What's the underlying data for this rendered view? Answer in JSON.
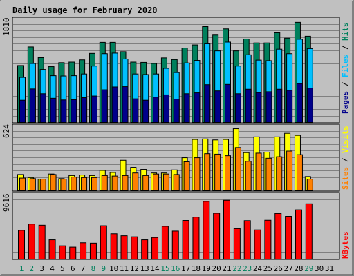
{
  "colors": {
    "title": "#0000ff",
    "hits": "#00805c",
    "files": "#00c0ff",
    "pages": "#00008b",
    "visits": "#ffff00",
    "sites": "#ff8000",
    "kbytes": "#ff0000",
    "weekend_label": "#00805c",
    "weekday_label": "#000000",
    "plot_bg": "#c0c0c0",
    "grid": "#808080"
  },
  "chart_data": [
    {
      "type": "bar",
      "title": "Daily usage for February 2020",
      "ymax_label": "1810",
      "ylim": [
        0,
        1810
      ],
      "side_legend": [
        "Hits",
        "Files",
        "Pages"
      ],
      "categories": [
        "1",
        "2",
        "3",
        "4",
        "5",
        "6",
        "7",
        "8",
        "9",
        "10",
        "11",
        "12",
        "13",
        "14",
        "15",
        "16",
        "17",
        "18",
        "19",
        "20",
        "21",
        "22",
        "23",
        "24",
        "25",
        "26",
        "27",
        "28",
        "29",
        "30",
        "31"
      ],
      "series": [
        {
          "name": "Hits",
          "values": [
            1010,
            1340,
            1150,
            990,
            1060,
            1070,
            1110,
            1225,
            1420,
            1420,
            1255,
            1070,
            1065,
            1045,
            1145,
            1115,
            1320,
            1375,
            1700,
            1550,
            1660,
            1270,
            1480,
            1410,
            1410,
            1590,
            1495,
            1775,
            1530,
            0,
            0
          ]
        },
        {
          "name": "Files",
          "values": [
            800,
            1045,
            940,
            830,
            825,
            830,
            860,
            1000,
            1220,
            1230,
            1125,
            860,
            850,
            860,
            960,
            885,
            1055,
            1100,
            1395,
            1270,
            1425,
            1000,
            1200,
            1105,
            1095,
            1300,
            1220,
            1475,
            1310,
            0,
            0
          ]
        },
        {
          "name": "Pages",
          "values": [
            395,
            595,
            510,
            430,
            400,
            405,
            440,
            470,
            580,
            630,
            635,
            420,
            395,
            450,
            490,
            415,
            510,
            525,
            670,
            560,
            675,
            510,
            590,
            530,
            545,
            590,
            570,
            690,
            610,
            0,
            0
          ]
        }
      ]
    },
    {
      "type": "bar",
      "ymax_label": "624",
      "ylim": [
        0,
        624
      ],
      "side_legend": [
        "Visits",
        "Sites"
      ],
      "categories": [
        "1",
        "2",
        "3",
        "4",
        "5",
        "6",
        "7",
        "8",
        "9",
        "10",
        "11",
        "12",
        "13",
        "14",
        "15",
        "16",
        "17",
        "18",
        "19",
        "20",
        "21",
        "22",
        "23",
        "24",
        "25",
        "26",
        "27",
        "28",
        "29",
        "30",
        "31"
      ],
      "series": [
        {
          "name": "Visits",
          "values": [
            160,
            130,
            115,
            165,
            120,
            150,
            155,
            150,
            200,
            180,
            300,
            230,
            210,
            175,
            175,
            205,
            325,
            505,
            510,
            500,
            505,
            610,
            375,
            530,
            380,
            530,
            565,
            545,
            140,
            0,
            0
          ]
        },
        {
          "name": "Sites",
          "values": [
            125,
            120,
            115,
            160,
            115,
            135,
            130,
            130,
            150,
            145,
            150,
            175,
            150,
            165,
            165,
            160,
            285,
            325,
            365,
            360,
            345,
            425,
            290,
            370,
            320,
            335,
            390,
            355,
            115,
            0,
            0
          ]
        }
      ]
    },
    {
      "type": "bar",
      "ymax_label": "9616",
      "ylim": [
        0,
        9616
      ],
      "side_legend": [
        "KBytes"
      ],
      "categories": [
        "1",
        "2",
        "3",
        "4",
        "5",
        "6",
        "7",
        "8",
        "9",
        "10",
        "11",
        "12",
        "13",
        "14",
        "15",
        "16",
        "17",
        "18",
        "19",
        "20",
        "21",
        "22",
        "23",
        "24",
        "25",
        "26",
        "27",
        "28",
        "29",
        "30",
        "31"
      ],
      "series": [
        {
          "name": "KBytes",
          "values": [
            4350,
            5310,
            5140,
            2920,
            2020,
            1820,
            2480,
            2420,
            5060,
            3840,
            3540,
            3380,
            2920,
            3270,
            4970,
            4240,
            5850,
            6360,
            8740,
            6950,
            8910,
            4610,
            5820,
            4420,
            5880,
            6910,
            6480,
            7460,
            8380,
            0,
            0
          ]
        }
      ]
    }
  ],
  "x_labels": [
    {
      "text": "1",
      "weekend": true
    },
    {
      "text": "2",
      "weekend": true
    },
    {
      "text": "3",
      "weekend": false
    },
    {
      "text": "4",
      "weekend": false
    },
    {
      "text": "5",
      "weekend": false
    },
    {
      "text": "6",
      "weekend": false
    },
    {
      "text": "7",
      "weekend": false
    },
    {
      "text": "8",
      "weekend": true
    },
    {
      "text": "9",
      "weekend": true
    },
    {
      "text": "10",
      "weekend": false
    },
    {
      "text": "11",
      "weekend": false
    },
    {
      "text": "12",
      "weekend": false
    },
    {
      "text": "13",
      "weekend": false
    },
    {
      "text": "14",
      "weekend": false
    },
    {
      "text": "15",
      "weekend": true
    },
    {
      "text": "16",
      "weekend": true
    },
    {
      "text": "17",
      "weekend": false
    },
    {
      "text": "18",
      "weekend": false
    },
    {
      "text": "19",
      "weekend": false
    },
    {
      "text": "20",
      "weekend": false
    },
    {
      "text": "21",
      "weekend": false
    },
    {
      "text": "22",
      "weekend": true
    },
    {
      "text": "23",
      "weekend": true
    },
    {
      "text": "24",
      "weekend": false
    },
    {
      "text": "25",
      "weekend": false
    },
    {
      "text": "26",
      "weekend": false
    },
    {
      "text": "27",
      "weekend": false
    },
    {
      "text": "28",
      "weekend": false
    },
    {
      "text": "29",
      "weekend": true
    },
    {
      "text": "30",
      "weekend": false
    },
    {
      "text": "31",
      "weekend": false
    }
  ]
}
